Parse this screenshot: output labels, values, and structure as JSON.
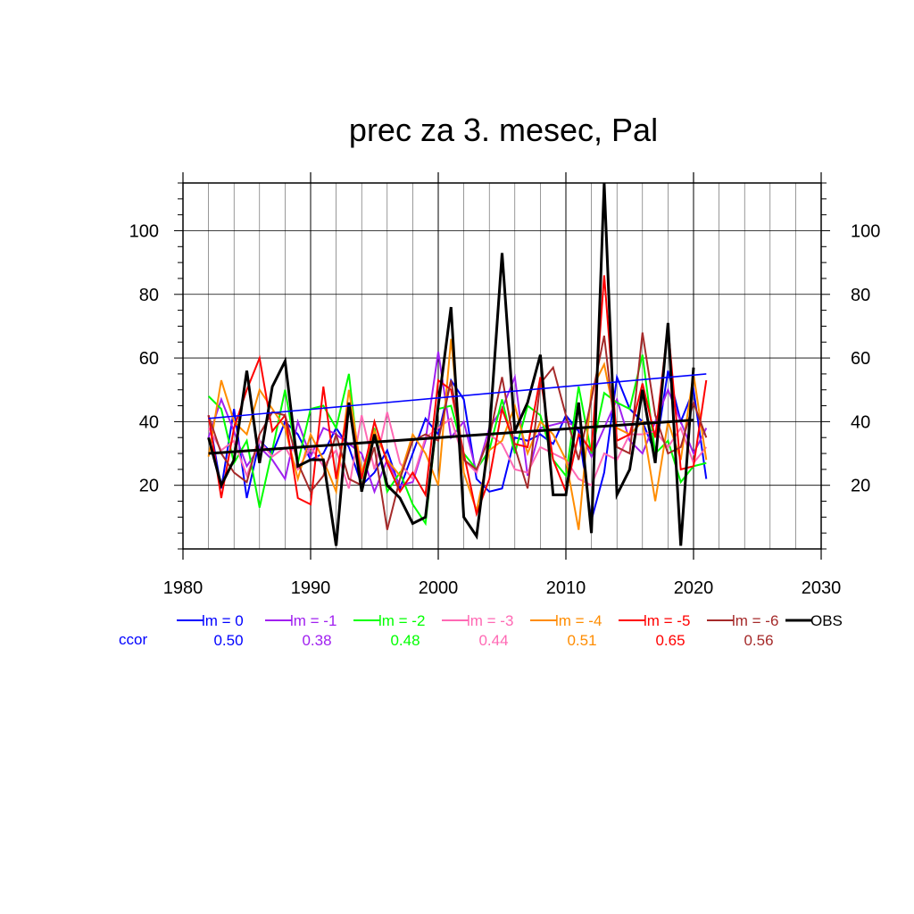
{
  "chart_data": {
    "type": "line",
    "title": "prec za 3. mesec, Pal",
    "xlim": [
      1980,
      2030
    ],
    "ylim": [
      0,
      115
    ],
    "x_ticks": [
      1980,
      1990,
      2000,
      2010,
      2020,
      2030
    ],
    "y_ticks": [
      20,
      40,
      60,
      80,
      100
    ],
    "grid": true,
    "legend_placement": "below",
    "ccor_label": "ccor",
    "ccor_label_color": "#0000ff",
    "x": [
      1982,
      1983,
      1984,
      1985,
      1986,
      1987,
      1988,
      1989,
      1990,
      1991,
      1992,
      1993,
      1994,
      1995,
      1996,
      1997,
      1998,
      1999,
      2000,
      2001,
      2002,
      2003,
      2004,
      2005,
      2006,
      2007,
      2008,
      2009,
      2010,
      2011,
      2012,
      2013,
      2014,
      2015,
      2016,
      2017,
      2018,
      2019,
      2020,
      2021
    ],
    "series": [
      {
        "name": "lm = 0",
        "color": "#0000ff",
        "ccor": "0.50",
        "values": [
          42,
          19,
          44,
          16,
          34,
          30,
          40,
          36,
          28,
          30,
          38,
          32,
          20,
          24,
          31,
          19,
          30,
          41,
          36,
          53,
          47,
          22,
          18,
          19,
          35,
          34,
          36,
          33,
          42,
          37,
          9,
          24,
          54,
          44,
          40,
          30,
          56,
          40,
          50,
          22
        ],
        "trend": [
          41,
          55
        ]
      },
      {
        "name": "lm = -1",
        "color": "#a020f0",
        "ccor": "0.38",
        "values": [
          35,
          47,
          37,
          26,
          32,
          28,
          22,
          40,
          29,
          38,
          36,
          33,
          30,
          18,
          28,
          20,
          21,
          34,
          62,
          35,
          40,
          24,
          38,
          44,
          54,
          23,
          38,
          39,
          40,
          38,
          29,
          38,
          47,
          34,
          30,
          40,
          50,
          40,
          30,
          38
        ],
        "trend": null
      },
      {
        "name": "lm = -2",
        "color": "#00ff00",
        "ccor": "0.48",
        "values": [
          48,
          44,
          27,
          34,
          13,
          31,
          50,
          27,
          44,
          45,
          38,
          55,
          19,
          38,
          18,
          24,
          14,
          8,
          44,
          45,
          30,
          25,
          31,
          47,
          30,
          45,
          42,
          28,
          23,
          51,
          30,
          49,
          46,
          44,
          61,
          30,
          34,
          21,
          26,
          27
        ],
        "trend": null
      },
      {
        "name": "lm = -3",
        "color": "#ff69b4",
        "ccor": "0.44",
        "values": [
          38,
          31,
          34,
          23,
          34,
          29,
          32,
          25,
          32,
          26,
          31,
          19,
          42,
          25,
          43,
          27,
          22,
          35,
          38,
          41,
          28,
          24,
          36,
          33,
          25,
          24,
          32,
          30,
          28,
          22,
          20,
          30,
          28,
          36,
          36,
          37,
          32,
          38,
          27,
          32
        ],
        "trend": null
      },
      {
        "name": "lm = -4",
        "color": "#ff8c00",
        "ccor": "0.51",
        "values": [
          29,
          53,
          40,
          36,
          50,
          44,
          38,
          22,
          36,
          28,
          18,
          50,
          24,
          37,
          28,
          23,
          36,
          30,
          20,
          66,
          24,
          12,
          31,
          34,
          45,
          30,
          40,
          36,
          28,
          6,
          50,
          58,
          38,
          36,
          40,
          15,
          40,
          28,
          55,
          28
        ],
        "trend": null
      },
      {
        "name": "lm = -5",
        "color": "#ff0000",
        "ccor": "0.65",
        "values": [
          42,
          16,
          38,
          50,
          60,
          37,
          42,
          16,
          14,
          51,
          22,
          46,
          22,
          40,
          27,
          18,
          24,
          17,
          53,
          50,
          30,
          11,
          22,
          44,
          33,
          32,
          54,
          28,
          18,
          36,
          31,
          86,
          34,
          36,
          52,
          35,
          70,
          25,
          26,
          53
        ],
        "trend": null
      },
      {
        "name": "lm = -6",
        "color": "#a52a2a",
        "ccor": "0.56",
        "values": [
          42,
          30,
          24,
          21,
          36,
          43,
          42,
          27,
          18,
          23,
          36,
          22,
          20,
          32,
          6,
          22,
          34,
          36,
          34,
          53,
          28,
          25,
          35,
          54,
          32,
          19,
          52,
          57,
          42,
          28,
          47,
          67,
          32,
          30,
          68,
          42,
          30,
          32,
          46,
          35
        ],
        "trend": null
      },
      {
        "name": "OBS",
        "color": "#000000",
        "ccor": "",
        "values": [
          35,
          20,
          28,
          56,
          27,
          51,
          59,
          26,
          28,
          28,
          1,
          46,
          18,
          36,
          20,
          16,
          8,
          10,
          45,
          76,
          10,
          4,
          36,
          93,
          37,
          46,
          61,
          17,
          17,
          46,
          5,
          115,
          17,
          25,
          50,
          27,
          71,
          1,
          57,
          null
        ],
        "trend": [
          30,
          40.5
        ]
      }
    ]
  }
}
